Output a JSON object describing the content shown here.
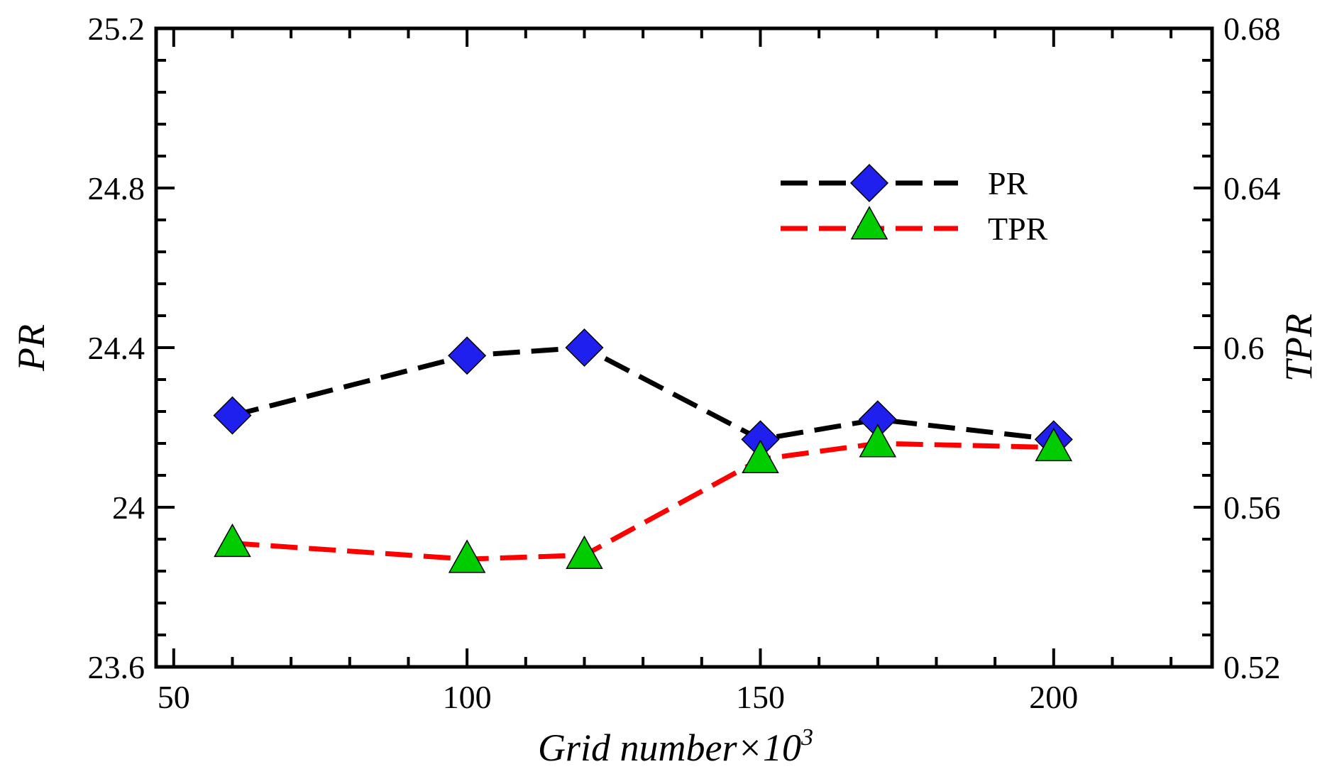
{
  "chart_data": {
    "type": "line",
    "title": "",
    "x": [
      60,
      100,
      120,
      150,
      170,
      200
    ],
    "xlabel": "Grid number×10",
    "xlabel_superscript": "3",
    "xlim": [
      47,
      227
    ],
    "xticks": [
      50,
      100,
      150,
      200
    ],
    "xtick_labels": [
      "50",
      "100",
      "150",
      "200"
    ],
    "y_left": {
      "label": "PR",
      "lim": [
        23.6,
        25.2
      ],
      "ticks": [
        23.6,
        24,
        24.4,
        24.8,
        25.2
      ],
      "tick_labels": [
        "23.6",
        "24",
        "24.4",
        "24.8",
        "25.2"
      ]
    },
    "y_right": {
      "label": "TPR",
      "lim": [
        0.52,
        0.68
      ],
      "ticks": [
        0.52,
        0.56,
        0.6,
        0.64,
        0.68
      ],
      "tick_labels": [
        "0.52",
        "0.56",
        "0.6",
        "0.64",
        "0.68"
      ]
    },
    "series": [
      {
        "name": "PR",
        "axis": "left",
        "values": [
          24.23,
          24.38,
          24.4,
          24.17,
          24.22,
          24.17
        ],
        "line_color": "#000000",
        "line_style": "dashed",
        "marker": "diamond",
        "marker_color": "#2020ee"
      },
      {
        "name": "TPR",
        "axis": "right",
        "values": [
          0.551,
          0.547,
          0.548,
          0.572,
          0.576,
          0.575
        ],
        "line_color": "#ff0000",
        "line_style": "dashed",
        "marker": "triangle",
        "marker_color": "#00cc00"
      }
    ],
    "legend": {
      "position": "top-right",
      "entries": [
        "PR",
        "TPR"
      ]
    },
    "grid": false
  }
}
